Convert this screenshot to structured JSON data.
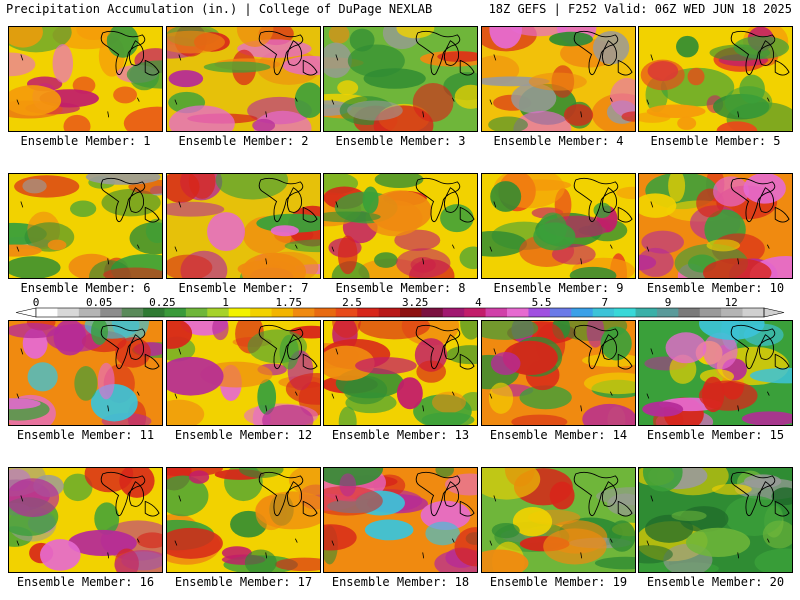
{
  "header": {
    "left": "Precipitation Accumulation (in.) | College of DuPage NEXLAB",
    "right": "18Z GEFS | F252 Valid: 06Z WED JUN 18 2025"
  },
  "members": [
    {
      "label": "Ensemble Member: 1",
      "base": "#f2d200",
      "blobs": [
        "#e84a1a",
        "#f59a0a",
        "#c21d6a",
        "#e66ad0",
        "#3a9a3a"
      ]
    },
    {
      "label": "Ensemble Member: 2",
      "base": "#e6c10a",
      "blobs": [
        "#d7261a",
        "#f08a10",
        "#b52a98",
        "#3aa03a",
        "#e66ad0"
      ]
    },
    {
      "label": "Ensemble Member: 3",
      "base": "#6fb63a",
      "blobs": [
        "#2f8c33",
        "#f2d200",
        "#f08a10",
        "#9a9a9a",
        "#d7261a"
      ]
    },
    {
      "label": "Ensemble Member: 4",
      "base": "#f2c10a",
      "blobs": [
        "#d7261a",
        "#e66ad0",
        "#2f8c33",
        "#f08a10",
        "#9a9a9a"
      ]
    },
    {
      "label": "Ensemble Member: 5",
      "base": "#f2d200",
      "blobs": [
        "#3aa03a",
        "#e84a1a",
        "#f59a0a",
        "#2f8c33",
        "#c21d6a"
      ]
    },
    {
      "label": "Ensemble Member: 6",
      "base": "#f2d200",
      "blobs": [
        "#3aa03a",
        "#2f8c33",
        "#f08a10",
        "#d7261a",
        "#9a9a9a"
      ]
    },
    {
      "label": "Ensemble Member: 7",
      "base": "#e6c10a",
      "blobs": [
        "#d7261a",
        "#b52a98",
        "#e66ad0",
        "#3aa03a",
        "#f08a10"
      ]
    },
    {
      "label": "Ensemble Member: 8",
      "base": "#f2d200",
      "blobs": [
        "#3aa03a",
        "#d7261a",
        "#f08a10",
        "#2f8c33",
        "#c21d6a"
      ]
    },
    {
      "label": "Ensemble Member: 9",
      "base": "#f2d200",
      "blobs": [
        "#3aa03a",
        "#2f8c33",
        "#e84a1a",
        "#f59a0a",
        "#c21d6a"
      ]
    },
    {
      "label": "Ensemble Member: 10",
      "base": "#f08a10",
      "blobs": [
        "#d7261a",
        "#b52a98",
        "#e66ad0",
        "#3aa03a",
        "#f2d200"
      ]
    },
    {
      "label": "Ensemble Member: 11",
      "base": "#f08a10",
      "blobs": [
        "#d7261a",
        "#b52a98",
        "#3cc3d8",
        "#e66ad0",
        "#3aa03a"
      ]
    },
    {
      "label": "Ensemble Member: 12",
      "base": "#f2d200",
      "blobs": [
        "#d7261a",
        "#b52a98",
        "#e66ad0",
        "#3aa03a",
        "#f08a10"
      ]
    },
    {
      "label": "Ensemble Member: 13",
      "base": "#f2d200",
      "blobs": [
        "#d7261a",
        "#3aa03a",
        "#f08a10",
        "#2f8c33",
        "#c21d6a"
      ]
    },
    {
      "label": "Ensemble Member: 14",
      "base": "#f08a10",
      "blobs": [
        "#d7261a",
        "#b52a98",
        "#3aa03a",
        "#f2d200",
        "#2f8c33"
      ]
    },
    {
      "label": "Ensemble Member: 15",
      "base": "#3aa03a",
      "blobs": [
        "#d7261a",
        "#b52a98",
        "#3cc3d8",
        "#f2d200",
        "#e66ad0"
      ]
    },
    {
      "label": "Ensemble Member: 16",
      "base": "#f2d200",
      "blobs": [
        "#d7261a",
        "#b52a98",
        "#e66ad0",
        "#3aa03a",
        "#9a9a9a"
      ]
    },
    {
      "label": "Ensemble Member: 17",
      "base": "#f2d200",
      "blobs": [
        "#f08a10",
        "#d7261a",
        "#3aa03a",
        "#2f8c33",
        "#c21d6a"
      ]
    },
    {
      "label": "Ensemble Member: 18",
      "base": "#f08a10",
      "blobs": [
        "#d7261a",
        "#b52a98",
        "#e66ad0",
        "#3cc3d8",
        "#2f8c33"
      ]
    },
    {
      "label": "Ensemble Member: 19",
      "base": "#6fb63a",
      "blobs": [
        "#f2d200",
        "#2f8c33",
        "#d7261a",
        "#9a9a9a",
        "#f08a10"
      ]
    },
    {
      "label": "Ensemble Member: 20",
      "base": "#2f8c33",
      "blobs": [
        "#6fb63a",
        "#3aa03a",
        "#9a9a9a",
        "#f2d200",
        "#1f6a2a"
      ]
    }
  ],
  "colorbar": {
    "labels": [
      "0",
      "0.05",
      "0.25",
      "1",
      "1.75",
      "2.5",
      "3.25",
      "4",
      "5.5",
      "7",
      "9",
      "12"
    ],
    "colors": [
      "#ffffff",
      "#d8d8d8",
      "#b4b4b4",
      "#8c8c8c",
      "#5a8a5a",
      "#2f7a33",
      "#3a9a3a",
      "#6fb63a",
      "#a6d22a",
      "#f2f200",
      "#f2d200",
      "#f2b400",
      "#f08a10",
      "#e86a10",
      "#e84a1a",
      "#d7261a",
      "#b81818",
      "#8c1010",
      "#7a1040",
      "#a01870",
      "#c21d6a",
      "#d040a8",
      "#e66ad0",
      "#a050e0",
      "#6a7ae8",
      "#3aa0e8",
      "#3cc3d8",
      "#38d8d8",
      "#3ab0a8",
      "#5a9a9a",
      "#7a7a7a",
      "#9a9a9a",
      "#b4b4b4",
      "#d0d0d0"
    ]
  }
}
